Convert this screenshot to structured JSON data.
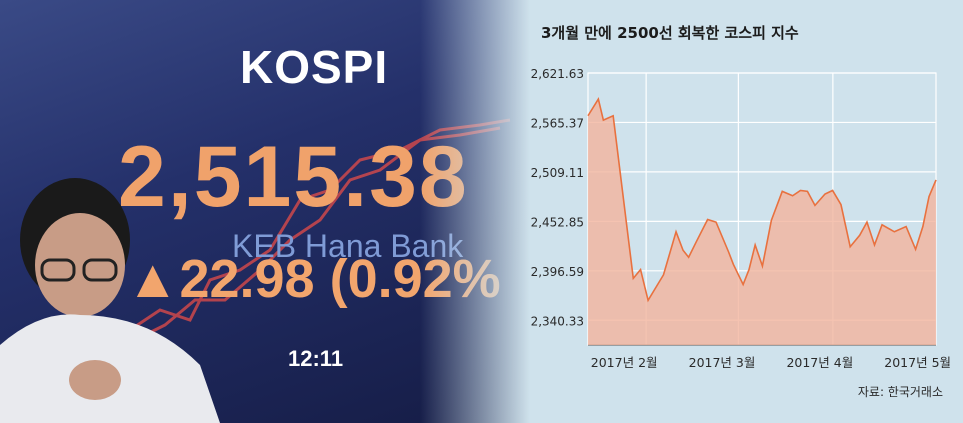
{
  "photo": {
    "board_title": "KOSPI",
    "board_value": "2,515.38",
    "board_bank": "KEB Hana Bank",
    "board_change": "▲22.98 (0.92%",
    "board_time": "12:11"
  },
  "chart_data": {
    "type": "area",
    "title": "3개월 만에 2500선 회복한 코스피 지수",
    "source": "자료: 한국거래소",
    "y_ticks": [
      "2,621.63",
      "2,565.37",
      "2,509.11",
      "2,452.85",
      "2,396.59",
      "2,340.33"
    ],
    "y_tick_values": [
      2621.63,
      2565.37,
      2509.11,
      2452.85,
      2396.59,
      2340.33
    ],
    "ylim": [
      2312.2,
      2621.63
    ],
    "x_tick_labels": [
      "2017년 2월",
      "2017년 3월",
      "2017년 4월",
      "2017년 5월"
    ],
    "x_tick_positions": [
      0.1,
      3.6,
      7.1,
      10.6
    ],
    "xlim": [
      0,
      12.45
    ],
    "values": [
      [
        0.0,
        2573
      ],
      [
        0.37,
        2592
      ],
      [
        0.55,
        2568
      ],
      [
        0.9,
        2573
      ],
      [
        1.62,
        2388
      ],
      [
        1.88,
        2398
      ],
      [
        2.15,
        2363
      ],
      [
        2.7,
        2392
      ],
      [
        3.15,
        2441
      ],
      [
        3.4,
        2420
      ],
      [
        3.6,
        2412
      ],
      [
        3.88,
        2430
      ],
      [
        4.28,
        2455
      ],
      [
        4.58,
        2452
      ],
      [
        5.03,
        2418
      ],
      [
        5.2,
        2404
      ],
      [
        5.55,
        2381
      ],
      [
        5.76,
        2398
      ],
      [
        5.98,
        2426
      ],
      [
        6.24,
        2402
      ],
      [
        6.56,
        2454
      ],
      [
        6.95,
        2487
      ],
      [
        7.32,
        2482
      ],
      [
        7.6,
        2488
      ],
      [
        7.85,
        2487
      ],
      [
        8.12,
        2471
      ],
      [
        8.48,
        2484
      ],
      [
        8.75,
        2488
      ],
      [
        9.05,
        2472
      ],
      [
        9.38,
        2424
      ],
      [
        9.72,
        2437
      ],
      [
        9.98,
        2452
      ],
      [
        10.25,
        2426
      ],
      [
        10.52,
        2449
      ],
      [
        10.96,
        2441
      ],
      [
        11.38,
        2447
      ],
      [
        11.72,
        2421
      ],
      [
        11.98,
        2447
      ],
      [
        12.2,
        2481
      ],
      [
        12.45,
        2500
      ]
    ],
    "fill_color": "#f2b49d",
    "line_color": "#e8713f",
    "background": "#cfe2ec",
    "grid": true
  }
}
